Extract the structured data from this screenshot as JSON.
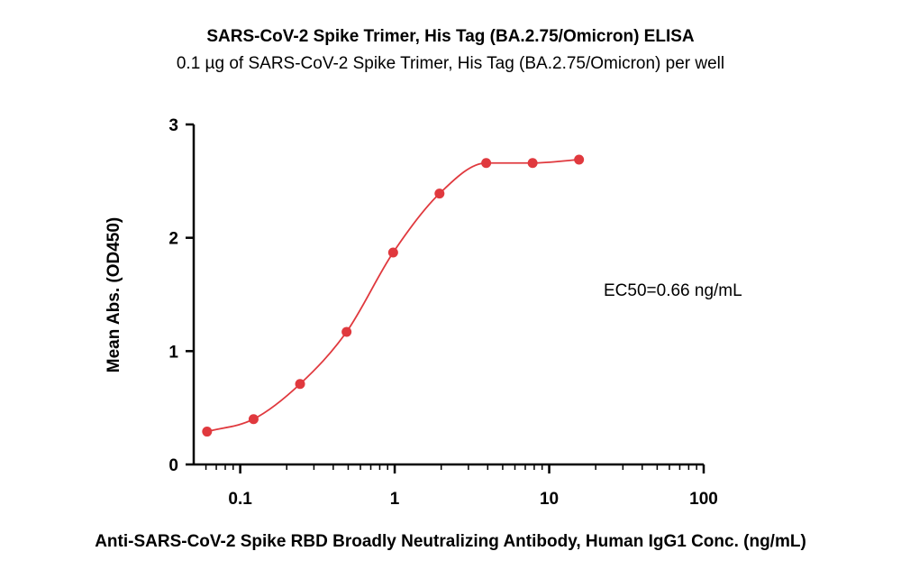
{
  "chart_data": {
    "type": "scatter",
    "title": "SARS-CoV-2 Spike Trimer, His Tag (BA.2.75/Omicron) ELISA",
    "subtitle": "0.1 µg of SARS-CoV-2 Spike Trimer, His Tag (BA.2.75/Omicron) per well",
    "xlabel": "Anti-SARS-CoV-2 Spike RBD Broadly Neutralizing Antibody, Human IgG1 Conc. (ng/mL)",
    "ylabel": "Mean Abs. (OD450)",
    "xscale": "log",
    "xlim": [
      0.05,
      100
    ],
    "ylim": [
      0,
      3
    ],
    "x_ticks": [
      0.1,
      1,
      10,
      100
    ],
    "x_tick_labels": [
      "0.1",
      "1",
      "10",
      "100"
    ],
    "y_ticks": [
      0,
      1,
      2,
      3
    ],
    "y_tick_labels": [
      "0",
      "1",
      "2",
      "3"
    ],
    "annotation": "EC50=0.66 ng/mL",
    "grid": false,
    "color": "#e0393e",
    "series": [
      {
        "x": [
          0.061,
          0.122,
          0.244,
          0.488,
          0.977,
          1.95,
          3.91,
          7.81,
          15.6
        ],
        "y": [
          0.29,
          0.4,
          0.71,
          1.17,
          1.87,
          2.39,
          2.66,
          2.66,
          2.69
        ],
        "fit_curve": true
      }
    ]
  }
}
